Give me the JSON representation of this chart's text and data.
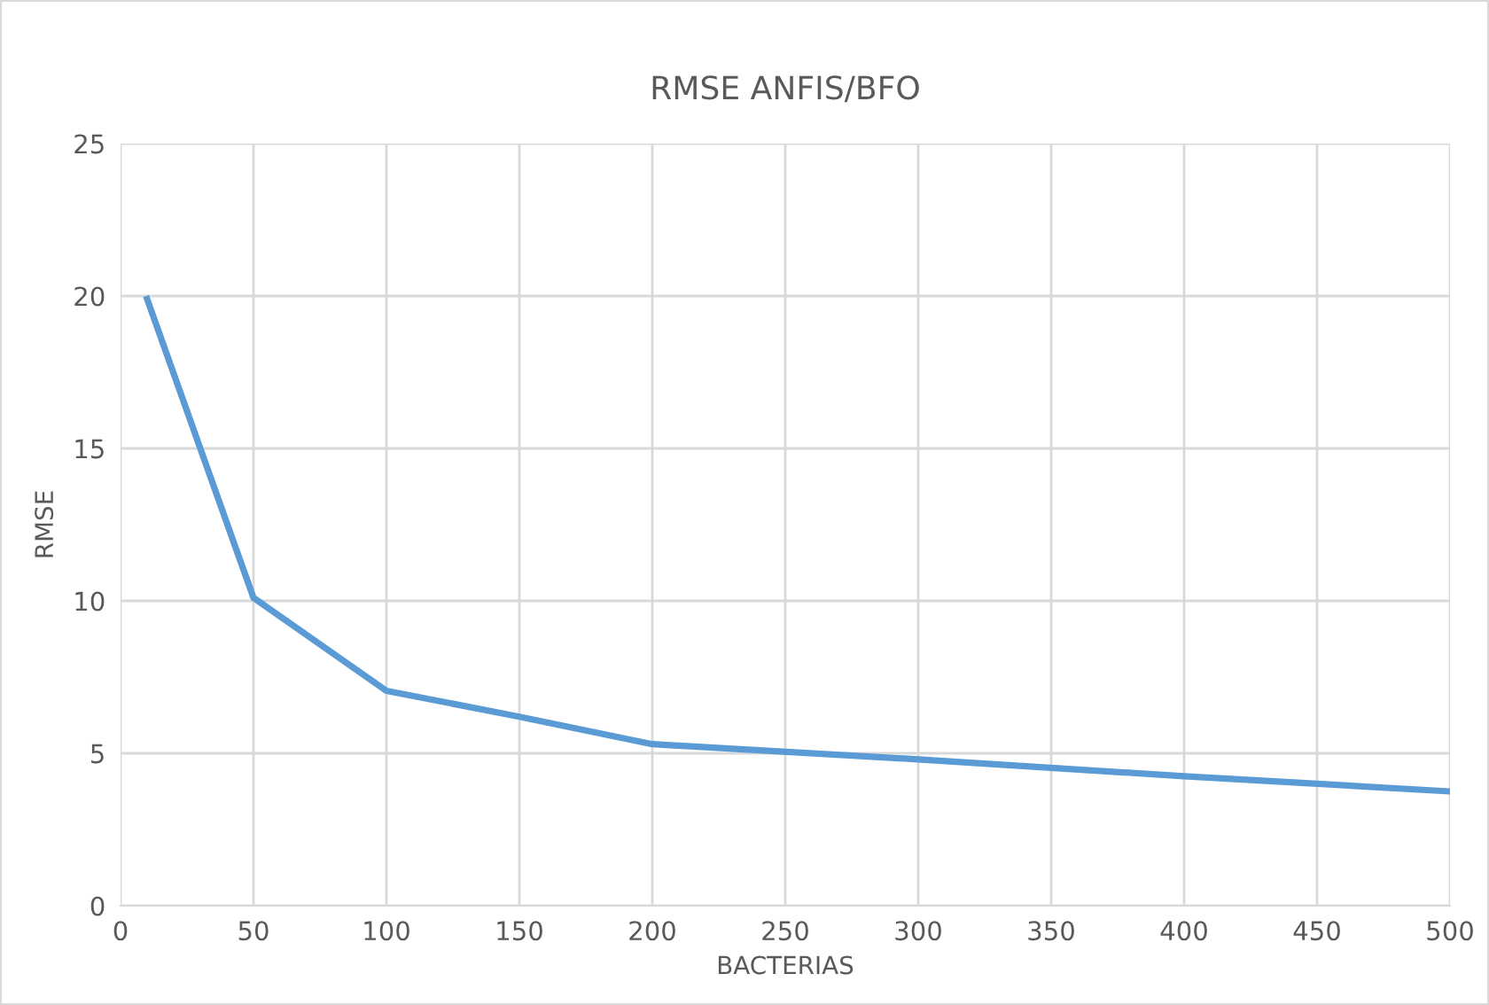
{
  "chart_data": {
    "type": "line",
    "title": "RMSE ANFIS/BFO",
    "xlabel": "BACTERIAS",
    "ylabel": "RMSE",
    "x": [
      10,
      50,
      100,
      150,
      200,
      300,
      400,
      500
    ],
    "series": [
      {
        "color": "#5b9bd5",
        "values": [
          19.9,
          10.1,
          7.05,
          6.2,
          5.3,
          4.8,
          4.25,
          3.75
        ]
      }
    ],
    "xlim": [
      0,
      500
    ],
    "xticks": [
      0,
      50,
      100,
      150,
      200,
      250,
      300,
      350,
      400,
      450,
      500
    ],
    "ylim": [
      0,
      25
    ],
    "yticks": [
      0,
      5,
      10,
      15,
      20,
      25
    ],
    "grid": true,
    "marker": "none",
    "line_style": "solid",
    "legend": false
  }
}
